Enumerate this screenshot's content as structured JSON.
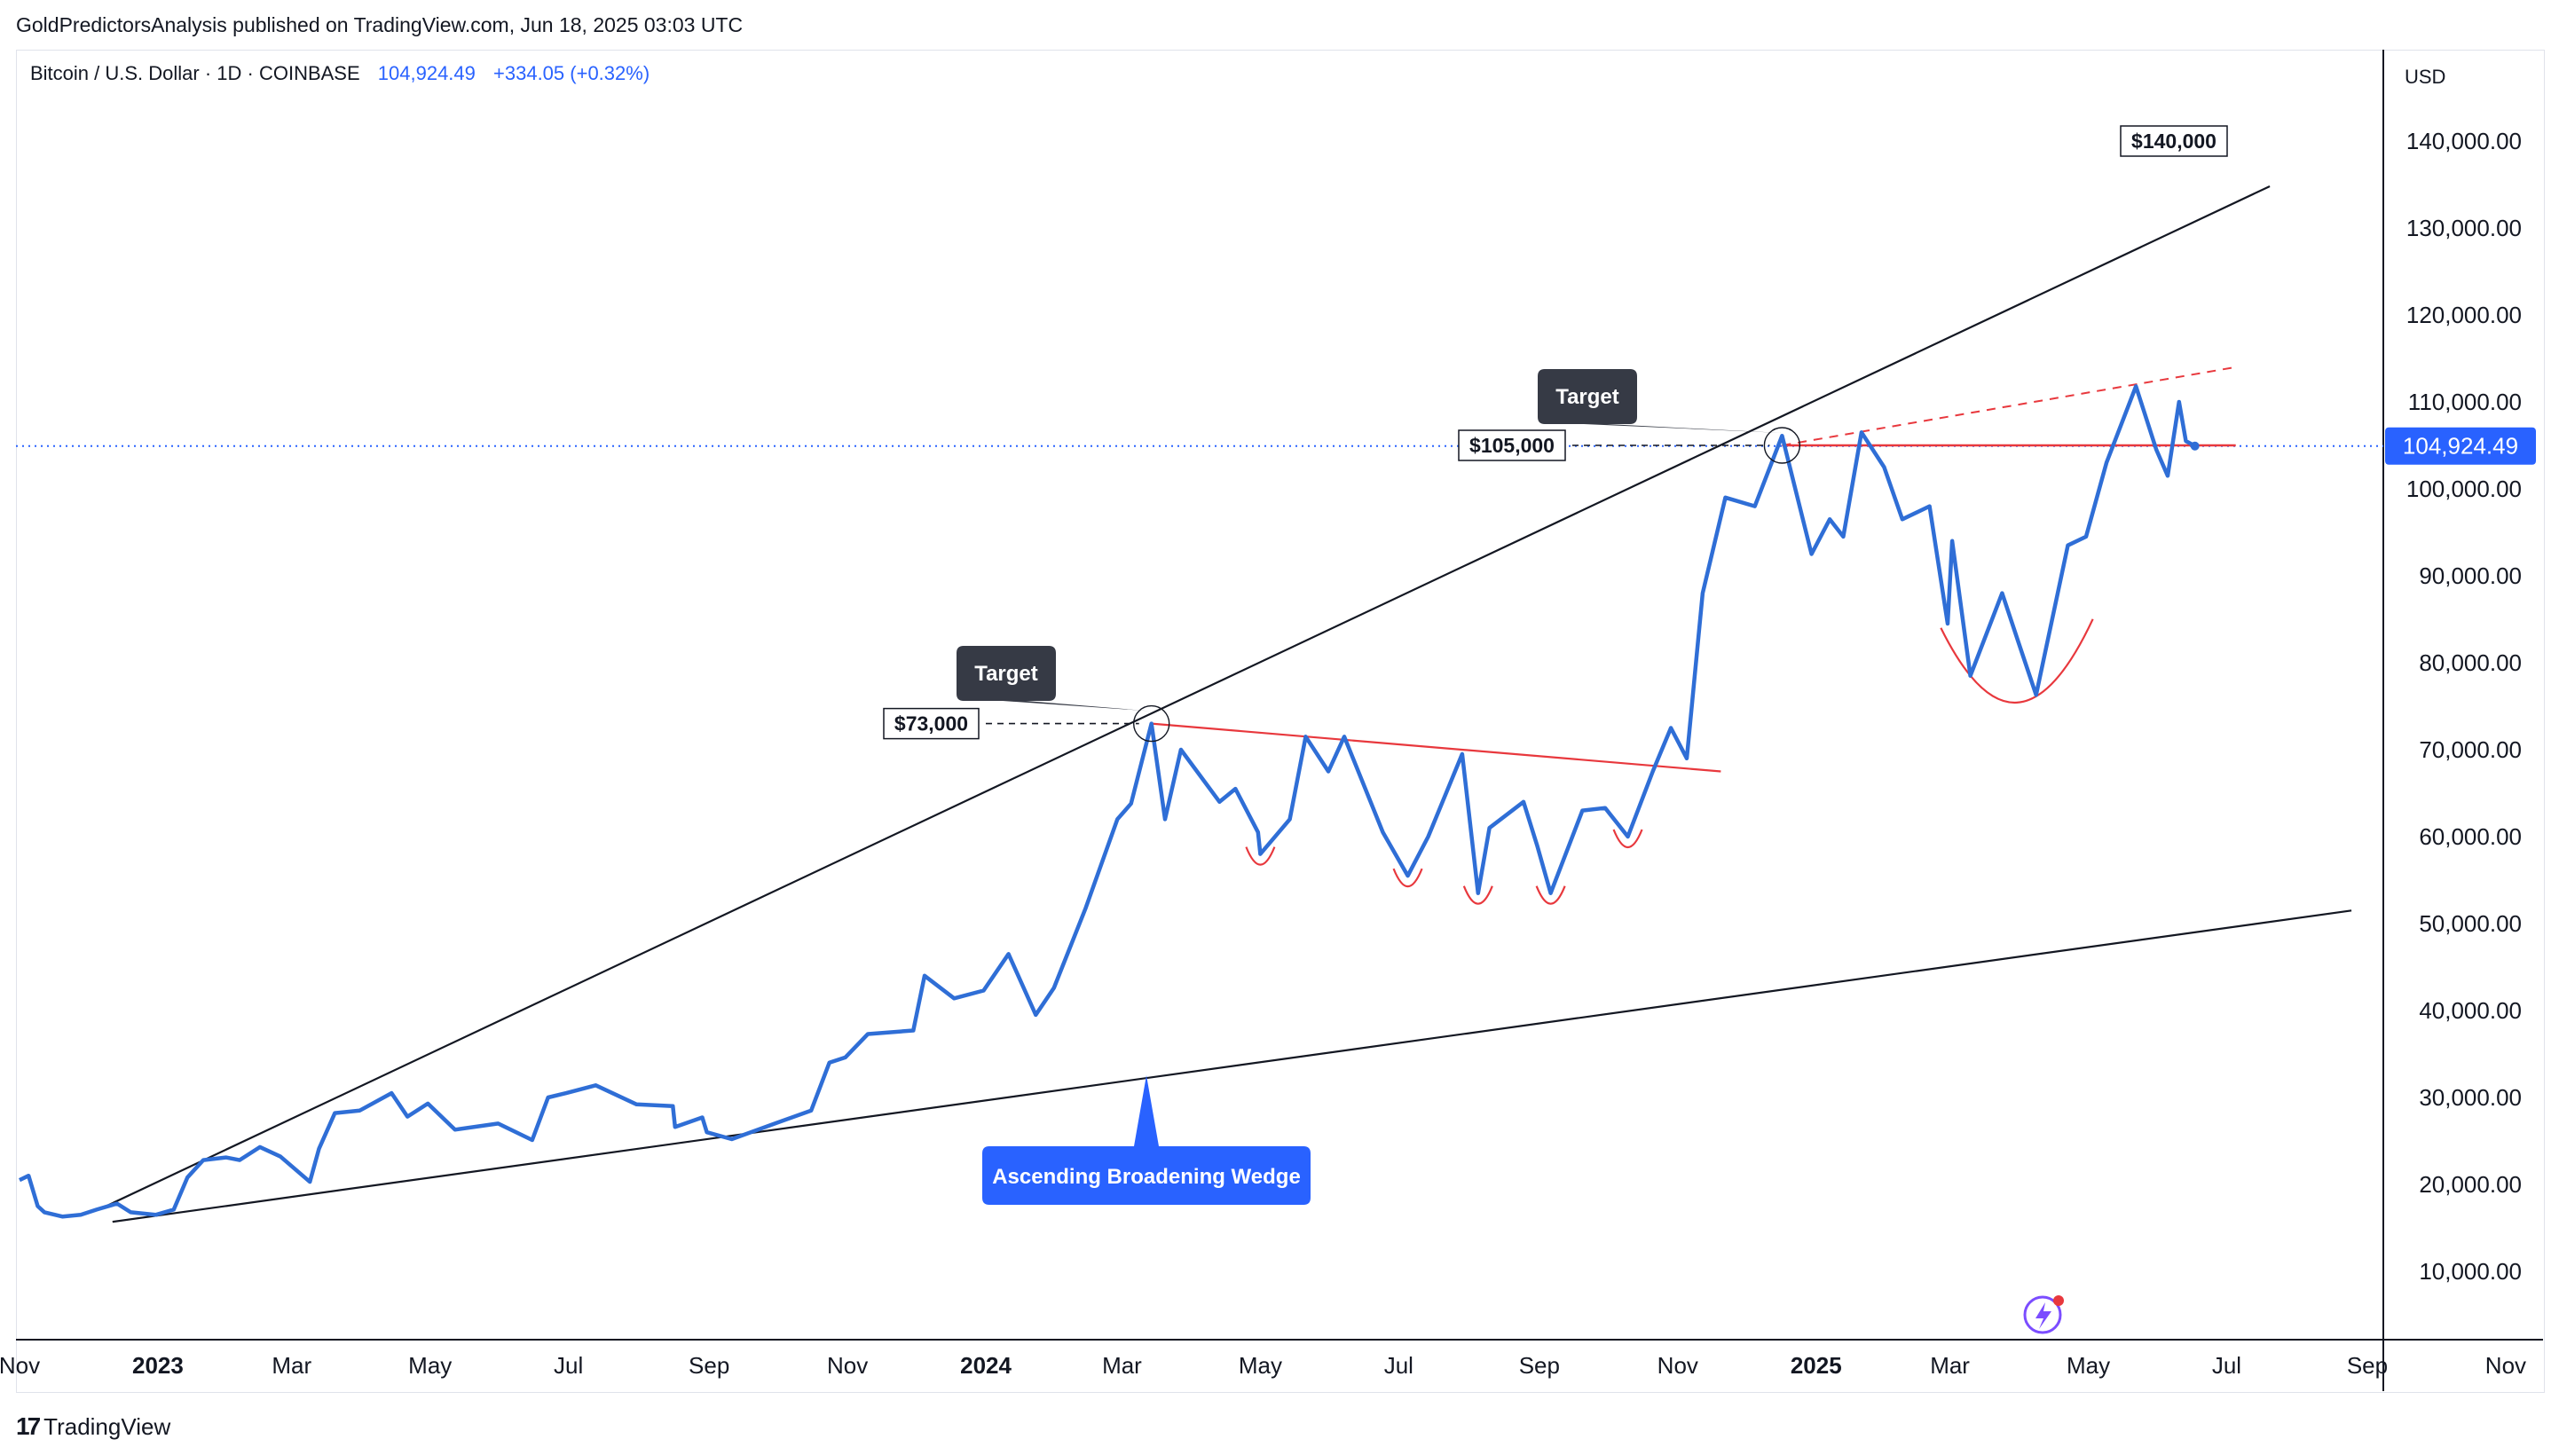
{
  "header": {
    "publisher": "GoldPredictorsAnalysis published on TradingView.com, Jun 18, 2025 03:03 UTC",
    "symbol": "Bitcoin / U.S. Dollar · 1D · COINBASE",
    "price": "104,924.49",
    "change": "+334.05 (+0.32%)",
    "currency": "USD"
  },
  "footer": {
    "brand": "TradingView",
    "brand_mark": "17"
  },
  "colors": {
    "series": "#2f6ed6",
    "wedge": "#131722",
    "resistance": "#e8383d",
    "callout": "#363a45",
    "wedge_label": "#2962ff",
    "price_line": "#2962ff"
  },
  "chart_data": {
    "type": "line",
    "title": "",
    "xlabel": "",
    "ylabel": "",
    "ylim": [
      0,
      145000
    ],
    "x_ticks": [
      "Nov",
      "2023",
      "Mar",
      "May",
      "Jul",
      "Sep",
      "Nov",
      "2024",
      "Mar",
      "May",
      "Jul",
      "Sep",
      "Nov",
      "2025",
      "Mar",
      "May",
      "Jul",
      "Sep",
      "Nov"
    ],
    "x_tick_dates": [
      "2022-11-01",
      "2023-01-01",
      "2023-03-01",
      "2023-05-01",
      "2023-07-01",
      "2023-09-01",
      "2023-11-01",
      "2024-01-01",
      "2024-03-01",
      "2024-05-01",
      "2024-07-01",
      "2024-09-01",
      "2024-11-01",
      "2025-01-01",
      "2025-03-01",
      "2025-05-01",
      "2025-07-01",
      "2025-09-01",
      "2025-11-01"
    ],
    "y_ticks": [
      "10,000.00",
      "20,000.00",
      "30,000.00",
      "40,000.00",
      "50,000.00",
      "60,000.00",
      "70,000.00",
      "80,000.00",
      "90,000.00",
      "100,000.00",
      "110,000.00",
      "120,000.00",
      "130,000.00",
      "140,000.00"
    ],
    "y_tick_values": [
      10000,
      20000,
      30000,
      40000,
      50000,
      60000,
      70000,
      80000,
      90000,
      100000,
      110000,
      120000,
      130000,
      140000
    ],
    "current_price_label": "104,924.49",
    "current_price": 104924.49,
    "series": [
      {
        "name": "BTC/USD",
        "points": [
          [
            "2022-11-01",
            20500
          ],
          [
            "2022-11-05",
            21000
          ],
          [
            "2022-11-09",
            17500
          ],
          [
            "2022-11-12",
            16800
          ],
          [
            "2022-11-20",
            16300
          ],
          [
            "2022-11-28",
            16500
          ],
          [
            "2022-12-05",
            17100
          ],
          [
            "2022-12-14",
            17800
          ],
          [
            "2022-12-20",
            16800
          ],
          [
            "2022-12-31",
            16500
          ],
          [
            "2023-01-08",
            17100
          ],
          [
            "2023-01-14",
            20800
          ],
          [
            "2023-01-21",
            22800
          ],
          [
            "2023-01-31",
            23100
          ],
          [
            "2023-02-06",
            22800
          ],
          [
            "2023-02-15",
            24300
          ],
          [
            "2023-02-24",
            23200
          ],
          [
            "2023-03-09",
            20300
          ],
          [
            "2023-03-13",
            24100
          ],
          [
            "2023-03-20",
            28200
          ],
          [
            "2023-03-31",
            28500
          ],
          [
            "2023-04-14",
            30500
          ],
          [
            "2023-04-21",
            27800
          ],
          [
            "2023-04-30",
            29300
          ],
          [
            "2023-05-12",
            26300
          ],
          [
            "2023-05-31",
            27000
          ],
          [
            "2023-06-15",
            25100
          ],
          [
            "2023-06-22",
            30000
          ],
          [
            "2023-06-30",
            30500
          ],
          [
            "2023-07-13",
            31400
          ],
          [
            "2023-07-31",
            29200
          ],
          [
            "2023-08-16",
            29000
          ],
          [
            "2023-08-17",
            26600
          ],
          [
            "2023-08-29",
            27700
          ],
          [
            "2023-08-31",
            26000
          ],
          [
            "2023-09-11",
            25200
          ],
          [
            "2023-09-30",
            27000
          ],
          [
            "2023-10-16",
            28500
          ],
          [
            "2023-10-24",
            34000
          ],
          [
            "2023-10-31",
            34600
          ],
          [
            "2023-11-10",
            37300
          ],
          [
            "2023-11-30",
            37700
          ],
          [
            "2023-12-05",
            44000
          ],
          [
            "2023-12-18",
            41400
          ],
          [
            "2023-12-31",
            42300
          ],
          [
            "2024-01-11",
            46500
          ],
          [
            "2024-01-23",
            39500
          ],
          [
            "2024-01-31",
            42600
          ],
          [
            "2024-02-14",
            51800
          ],
          [
            "2024-02-28",
            62000
          ],
          [
            "2024-03-05",
            63800
          ],
          [
            "2024-03-14",
            73000
          ],
          [
            "2024-03-20",
            62000
          ],
          [
            "2024-03-27",
            70000
          ],
          [
            "2024-04-13",
            64000
          ],
          [
            "2024-04-20",
            65500
          ],
          [
            "2024-04-30",
            60500
          ],
          [
            "2024-05-01",
            58000
          ],
          [
            "2024-05-14",
            62000
          ],
          [
            "2024-05-21",
            71500
          ],
          [
            "2024-05-31",
            67500
          ],
          [
            "2024-06-07",
            71500
          ],
          [
            "2024-06-24",
            60500
          ],
          [
            "2024-07-05",
            55500
          ],
          [
            "2024-07-14",
            60000
          ],
          [
            "2024-07-29",
            69500
          ],
          [
            "2024-08-05",
            53500
          ],
          [
            "2024-08-10",
            61000
          ],
          [
            "2024-08-25",
            64000
          ],
          [
            "2024-08-31",
            59000
          ],
          [
            "2024-09-06",
            53500
          ],
          [
            "2024-09-20",
            63000
          ],
          [
            "2024-09-30",
            63300
          ],
          [
            "2024-10-10",
            60000
          ],
          [
            "2024-10-21",
            67500
          ],
          [
            "2024-10-29",
            72500
          ],
          [
            "2024-11-05",
            69000
          ],
          [
            "2024-11-12",
            88000
          ],
          [
            "2024-11-22",
            99000
          ],
          [
            "2024-12-05",
            98000
          ],
          [
            "2024-12-17",
            106100
          ],
          [
            "2024-12-30",
            92500
          ],
          [
            "2025-01-07",
            96500
          ],
          [
            "2025-01-13",
            94500
          ],
          [
            "2025-01-21",
            106500
          ],
          [
            "2025-01-31",
            102500
          ],
          [
            "2025-02-08",
            96500
          ],
          [
            "2025-02-20",
            98000
          ],
          [
            "2025-02-28",
            84500
          ],
          [
            "2025-03-02",
            94000
          ],
          [
            "2025-03-10",
            78500
          ],
          [
            "2025-03-24",
            88000
          ],
          [
            "2025-03-31",
            82500
          ],
          [
            "2025-04-08",
            76300
          ],
          [
            "2025-04-22",
            93500
          ],
          [
            "2025-04-30",
            94500
          ],
          [
            "2025-05-09",
            103000
          ],
          [
            "2025-05-22",
            111800
          ],
          [
            "2025-05-31",
            104500
          ],
          [
            "2025-06-05",
            101500
          ],
          [
            "2025-06-10",
            110000
          ],
          [
            "2025-06-13",
            105500
          ],
          [
            "2025-06-17",
            104924.49
          ]
        ]
      }
    ],
    "annotations": {
      "target_73k": "$73,000",
      "target_105k": "$105,000",
      "target_140k": "$140,000",
      "callout_1": "Target",
      "callout_2": "Target",
      "pattern": "Ascending Broadening Wedge"
    },
    "overlay_lines": [
      {
        "name": "wedge-upper",
        "from": [
          "2022-12-10",
          17600
        ],
        "to": [
          "2025-07-20",
          134800
        ]
      },
      {
        "name": "wedge-lower",
        "from": [
          "2022-12-12",
          15700
        ],
        "to": [
          "2025-08-25",
          51500
        ]
      },
      {
        "name": "resistance-1",
        "from": [
          "2024-03-14",
          73000
        ],
        "to": [
          "2024-11-20",
          67500
        ]
      },
      {
        "name": "neckline-2",
        "from": [
          "2024-12-17",
          105000
        ],
        "to": [
          "2025-07-05",
          105000
        ]
      },
      {
        "name": "rising-resistance-dashed",
        "from": [
          "2024-12-17",
          105000
        ],
        "to": [
          "2025-07-05",
          114000
        ]
      }
    ],
    "grid": false,
    "log_scale": false
  }
}
